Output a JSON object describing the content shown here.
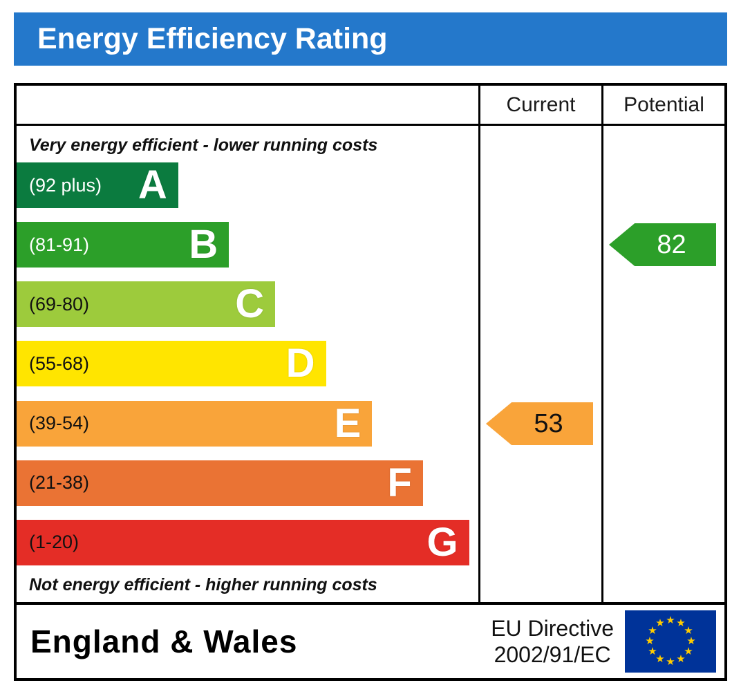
{
  "title": "Energy Efficiency Rating",
  "columns": {
    "current": "Current",
    "potential": "Potential"
  },
  "notes": {
    "top": "Very energy efficient - lower running costs",
    "bottom": "Not energy efficient - higher running costs"
  },
  "footer": {
    "region": "England & Wales",
    "directive_line1": "EU Directive",
    "directive_line2": "2002/91/EC"
  },
  "colors": {
    "header_bg": "#2478cb",
    "header_text": "#ffffff",
    "border": "#000000",
    "eu_flag_bg": "#003399",
    "eu_star": "#ffcc00"
  },
  "chart_data": {
    "type": "bar",
    "title": "Energy Efficiency Rating",
    "value_range": [
      1,
      100
    ],
    "bands": [
      {
        "letter": "A",
        "range_label": "(92 plus)",
        "range": [
          92,
          100
        ],
        "color": "#0b7b3f",
        "label_color": "#ffffff",
        "width_pct": 35
      },
      {
        "letter": "B",
        "range_label": "(81-91)",
        "range": [
          81,
          91
        ],
        "color": "#2c9f29",
        "label_color": "#ffffff",
        "width_pct": 46
      },
      {
        "letter": "C",
        "range_label": "(69-80)",
        "range": [
          69,
          80
        ],
        "color": "#9dcb3c",
        "label_color": "#111111",
        "width_pct": 56
      },
      {
        "letter": "D",
        "range_label": "(55-68)",
        "range": [
          55,
          68
        ],
        "color": "#ffe500",
        "label_color": "#111111",
        "width_pct": 67
      },
      {
        "letter": "E",
        "range_label": "(39-54)",
        "range": [
          39,
          54
        ],
        "color": "#f9a43a",
        "label_color": "#111111",
        "width_pct": 77
      },
      {
        "letter": "F",
        "range_label": "(21-38)",
        "range": [
          21,
          38
        ],
        "color": "#ea7334",
        "label_color": "#111111",
        "width_pct": 88
      },
      {
        "letter": "G",
        "range_label": "(1-20)",
        "range": [
          1,
          20
        ],
        "color": "#e42d26",
        "label_color": "#111111",
        "width_pct": 98
      }
    ],
    "markers": {
      "current": {
        "value": 53,
        "band": "E",
        "color": "#f9a43a",
        "text_color": "#111111"
      },
      "potential": {
        "value": 82,
        "band": "B",
        "color": "#2c9f29",
        "text_color": "#ffffff"
      }
    }
  }
}
